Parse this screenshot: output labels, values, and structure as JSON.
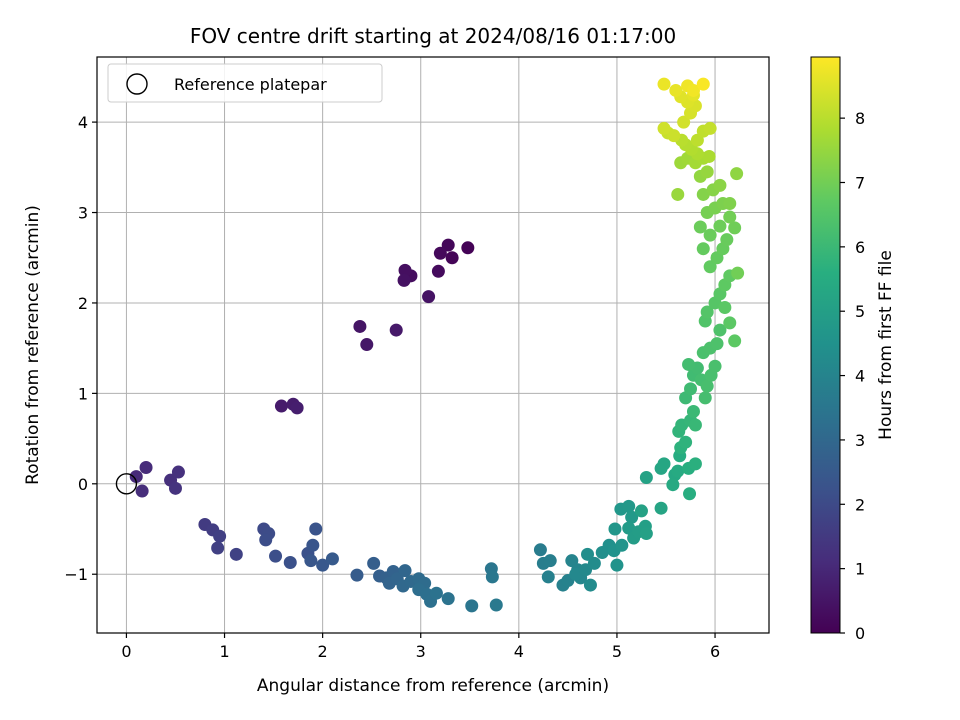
{
  "chart_data": {
    "type": "scatter",
    "title": "FOV centre drift starting at 2024/08/16 01:17:00",
    "xlabel": "Angular distance from reference (arcmin)",
    "ylabel": "Rotation from reference (arcmin)",
    "xlim": [
      -0.3,
      6.55
    ],
    "ylim": [
      -1.65,
      4.72
    ],
    "xticks": [
      0,
      1,
      2,
      3,
      4,
      5,
      6
    ],
    "yticks": [
      -1,
      0,
      1,
      2,
      3,
      4
    ],
    "grid": true,
    "legend": {
      "position": "top-left",
      "entries": [
        "Reference platepar"
      ]
    },
    "reference_point": {
      "x": 0,
      "y": 0
    },
    "colorbar": {
      "label": "Hours from first FF file",
      "colormap": "viridis",
      "range": [
        0,
        8.95
      ],
      "ticks": [
        0,
        1,
        2,
        3,
        4,
        5,
        6,
        7,
        8
      ]
    },
    "points": [
      [
        3.48,
        2.61,
        0.05
      ],
      [
        3.32,
        2.5,
        0.1
      ],
      [
        3.28,
        2.64,
        0.15
      ],
      [
        3.2,
        2.55,
        0.2
      ],
      [
        3.18,
        2.35,
        0.25
      ],
      [
        2.9,
        2.3,
        0.3
      ],
      [
        2.84,
        2.36,
        0.35
      ],
      [
        2.83,
        2.25,
        0.4
      ],
      [
        3.08,
        2.07,
        0.45
      ],
      [
        2.38,
        1.74,
        0.5
      ],
      [
        2.45,
        1.54,
        0.55
      ],
      [
        2.75,
        1.7,
        0.6
      ],
      [
        1.58,
        0.86,
        0.65
      ],
      [
        1.7,
        0.88,
        0.7
      ],
      [
        1.74,
        0.84,
        0.75
      ],
      [
        0.1,
        0.08,
        1.05
      ],
      [
        0.2,
        0.18,
        1.1
      ],
      [
        0.16,
        -0.08,
        1.15
      ],
      [
        0.45,
        0.04,
        1.2
      ],
      [
        0.53,
        0.13,
        1.25
      ],
      [
        0.5,
        -0.05,
        1.3
      ],
      [
        0.8,
        -0.45,
        1.55
      ],
      [
        0.88,
        -0.51,
        1.6
      ],
      [
        0.95,
        -0.58,
        1.65
      ],
      [
        0.93,
        -0.71,
        1.7
      ],
      [
        1.12,
        -0.78,
        1.75
      ],
      [
        1.4,
        -0.5,
        2.0
      ],
      [
        1.45,
        -0.55,
        2.05
      ],
      [
        1.42,
        -0.62,
        2.1
      ],
      [
        1.52,
        -0.8,
        2.15
      ],
      [
        1.67,
        -0.87,
        2.2
      ],
      [
        1.85,
        -0.77,
        2.25
      ],
      [
        1.93,
        -0.5,
        2.3
      ],
      [
        1.9,
        -0.68,
        2.35
      ],
      [
        1.88,
        -0.85,
        2.4
      ],
      [
        2.0,
        -0.9,
        2.45
      ],
      [
        2.1,
        -0.83,
        2.5
      ],
      [
        2.35,
        -1.01,
        2.6
      ],
      [
        2.52,
        -0.88,
        2.65
      ],
      [
        2.58,
        -1.02,
        2.7
      ],
      [
        2.65,
        -1.04,
        2.75
      ],
      [
        2.72,
        -0.97,
        2.8
      ],
      [
        2.68,
        -1.1,
        2.85
      ],
      [
        2.76,
        -1.05,
        2.9
      ],
      [
        2.84,
        -0.96,
        2.95
      ],
      [
        2.82,
        -1.13,
        3.0
      ],
      [
        2.9,
        -1.08,
        3.05
      ],
      [
        2.98,
        -1.05,
        3.1
      ],
      [
        3.04,
        -1.1,
        3.15
      ],
      [
        2.98,
        -1.17,
        3.2
      ],
      [
        3.06,
        -1.22,
        3.25
      ],
      [
        3.1,
        -1.3,
        3.3
      ],
      [
        3.16,
        -1.21,
        3.35
      ],
      [
        3.28,
        -1.27,
        3.4
      ],
      [
        3.52,
        -1.35,
        3.45
      ],
      [
        3.72,
        -0.94,
        3.5
      ],
      [
        3.73,
        -1.03,
        3.55
      ],
      [
        3.77,
        -1.34,
        3.6
      ],
      [
        4.22,
        -0.73,
        3.7
      ],
      [
        4.25,
        -0.88,
        3.75
      ],
      [
        4.32,
        -0.85,
        3.8
      ],
      [
        4.3,
        -1.03,
        3.85
      ],
      [
        4.45,
        -1.12,
        3.9
      ],
      [
        4.5,
        -1.07,
        3.95
      ],
      [
        4.54,
        -0.85,
        4.0
      ],
      [
        4.6,
        -0.95,
        4.05
      ],
      [
        4.63,
        -1.04,
        4.1
      ],
      [
        4.58,
        -1.0,
        4.15
      ],
      [
        4.68,
        -0.95,
        4.2
      ],
      [
        4.73,
        -1.12,
        4.25
      ],
      [
        4.77,
        -0.88,
        4.3
      ],
      [
        4.7,
        -0.78,
        4.35
      ],
      [
        4.85,
        -0.76,
        4.4
      ],
      [
        4.92,
        -0.68,
        4.45
      ],
      [
        4.97,
        -0.74,
        4.5
      ],
      [
        5.0,
        -0.9,
        4.55
      ],
      [
        5.05,
        -0.68,
        4.6
      ],
      [
        4.98,
        -0.5,
        4.65
      ],
      [
        5.04,
        -0.28,
        4.7
      ],
      [
        5.12,
        -0.25,
        4.75
      ],
      [
        5.15,
        -0.37,
        4.8
      ],
      [
        5.12,
        -0.49,
        4.85
      ],
      [
        5.17,
        -0.6,
        4.9
      ],
      [
        5.22,
        -0.53,
        4.95
      ],
      [
        5.29,
        -0.47,
        5.0
      ],
      [
        5.3,
        -0.55,
        5.05
      ],
      [
        5.25,
        -0.3,
        5.1
      ],
      [
        5.3,
        0.07,
        5.15
      ],
      [
        5.45,
        -0.27,
        5.2
      ],
      [
        5.45,
        0.17,
        5.25
      ],
      [
        5.48,
        0.22,
        5.3
      ],
      [
        5.59,
        0.1,
        5.35
      ],
      [
        5.57,
        -0.01,
        5.4
      ],
      [
        5.62,
        0.14,
        5.45
      ],
      [
        5.64,
        0.31,
        5.5
      ],
      [
        5.74,
        -0.11,
        5.55
      ],
      [
        5.73,
        0.17,
        5.6
      ],
      [
        5.8,
        0.22,
        5.65
      ],
      [
        5.65,
        0.4,
        5.7
      ],
      [
        5.7,
        0.46,
        5.75
      ],
      [
        5.63,
        0.58,
        5.8
      ],
      [
        5.66,
        0.65,
        5.85
      ],
      [
        5.75,
        0.7,
        5.9
      ],
      [
        5.8,
        0.65,
        5.95
      ],
      [
        5.78,
        0.8,
        6.0
      ],
      [
        5.7,
        0.95,
        6.05
      ],
      [
        5.75,
        1.05,
        6.1
      ],
      [
        5.78,
        1.2,
        6.12
      ],
      [
        5.82,
        1.28,
        6.15
      ],
      [
        5.73,
        1.32,
        6.18
      ],
      [
        5.86,
        1.15,
        6.2
      ],
      [
        5.9,
        0.95,
        6.22
      ],
      [
        5.92,
        1.08,
        6.25
      ],
      [
        5.96,
        1.2,
        6.28
      ],
      [
        6.0,
        1.3,
        6.3
      ],
      [
        5.88,
        1.45,
        6.32
      ],
      [
        5.95,
        1.5,
        6.35
      ],
      [
        6.02,
        1.55,
        6.38
      ],
      [
        6.05,
        1.7,
        6.4
      ],
      [
        5.9,
        1.8,
        6.45
      ],
      [
        5.92,
        1.9,
        6.5
      ],
      [
        6.0,
        2.0,
        6.55
      ],
      [
        6.05,
        2.1,
        6.6
      ],
      [
        6.1,
        1.95,
        6.62
      ],
      [
        6.15,
        1.78,
        6.65
      ],
      [
        6.2,
        1.58,
        6.68
      ],
      [
        6.1,
        2.2,
        6.7
      ],
      [
        6.15,
        2.3,
        6.72
      ],
      [
        5.95,
        2.4,
        6.75
      ],
      [
        6.02,
        2.5,
        6.78
      ],
      [
        5.88,
        2.6,
        6.8
      ],
      [
        6.08,
        2.6,
        6.82
      ],
      [
        6.12,
        2.7,
        6.85
      ],
      [
        5.95,
        2.75,
        6.88
      ],
      [
        5.85,
        2.84,
        6.9
      ],
      [
        6.05,
        2.85,
        6.92
      ],
      [
        6.2,
        2.83,
        6.95
      ],
      [
        6.23,
        2.33,
        6.98
      ],
      [
        6.15,
        2.95,
        7.0
      ],
      [
        5.92,
        3.0,
        7.05
      ],
      [
        6.0,
        3.05,
        7.1
      ],
      [
        6.08,
        3.1,
        7.15
      ],
      [
        6.15,
        3.1,
        7.2
      ],
      [
        5.88,
        3.2,
        7.25
      ],
      [
        5.98,
        3.25,
        7.3
      ],
      [
        6.05,
        3.3,
        7.35
      ],
      [
        6.22,
        3.43,
        7.4
      ],
      [
        5.85,
        3.4,
        7.45
      ],
      [
        5.92,
        3.45,
        7.5
      ],
      [
        5.62,
        3.2,
        7.55
      ],
      [
        5.65,
        3.55,
        7.6
      ],
      [
        5.72,
        3.6,
        7.65
      ],
      [
        5.8,
        3.55,
        7.7
      ],
      [
        5.88,
        3.6,
        7.75
      ],
      [
        5.94,
        3.62,
        7.8
      ],
      [
        5.82,
        3.65,
        7.85
      ],
      [
        5.76,
        3.7,
        7.9
      ],
      [
        5.7,
        3.75,
        7.95
      ],
      [
        5.66,
        3.8,
        8.0
      ],
      [
        5.82,
        3.8,
        8.05
      ],
      [
        5.88,
        3.9,
        8.1
      ],
      [
        5.95,
        3.93,
        8.15
      ],
      [
        5.52,
        3.88,
        8.2
      ],
      [
        5.58,
        3.85,
        8.25
      ],
      [
        5.48,
        3.93,
        8.3
      ],
      [
        5.68,
        4.0,
        8.35
      ],
      [
        5.75,
        4.1,
        8.4
      ],
      [
        5.8,
        4.18,
        8.45
      ],
      [
        5.72,
        4.22,
        8.5
      ],
      [
        5.65,
        4.28,
        8.55
      ],
      [
        5.78,
        4.3,
        8.6
      ],
      [
        5.6,
        4.35,
        8.65
      ],
      [
        5.48,
        4.42,
        8.7
      ],
      [
        5.72,
        4.4,
        8.75
      ],
      [
        5.78,
        4.35,
        8.8
      ],
      [
        5.88,
        4.42,
        8.9
      ]
    ]
  }
}
